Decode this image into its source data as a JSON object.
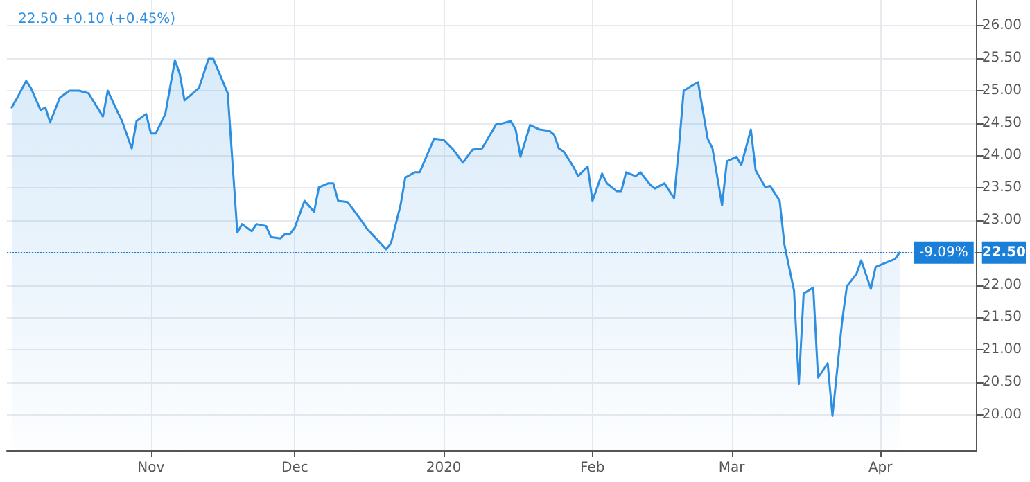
{
  "chart_data": {
    "type": "area",
    "title": "22.50 +0.10 (+0.45%)",
    "x": [
      "2019-10-03",
      "2019-10-04",
      "2019-10-06",
      "2019-10-07",
      "2019-10-09",
      "2019-10-10",
      "2019-10-11",
      "2019-10-13",
      "2019-10-15",
      "2019-10-17",
      "2019-10-19",
      "2019-10-22",
      "2019-10-23",
      "2019-10-25",
      "2019-10-26",
      "2019-10-28",
      "2019-10-29",
      "2019-10-31",
      "2019-11-01",
      "2019-11-02",
      "2019-11-04",
      "2019-11-06",
      "2019-11-07",
      "2019-11-08",
      "2019-11-11",
      "2019-11-13",
      "2019-11-14",
      "2019-11-17",
      "2019-11-19",
      "2019-11-20",
      "2019-11-22",
      "2019-11-23",
      "2019-11-25",
      "2019-11-26",
      "2019-11-28",
      "2019-11-29",
      "2019-11-30",
      "2019-12-01",
      "2019-12-03",
      "2019-12-05",
      "2019-12-06",
      "2019-12-08",
      "2019-12-09",
      "2019-12-10",
      "2019-12-12",
      "2019-12-15",
      "2019-12-16",
      "2019-12-20",
      "2019-12-21",
      "2019-12-23",
      "2019-12-24",
      "2019-12-26",
      "2019-12-27",
      "2019-12-30",
      "2020-01-01",
      "2020-01-03",
      "2020-01-05",
      "2020-01-07",
      "2020-01-09",
      "2020-01-12",
      "2020-01-13",
      "2020-01-15",
      "2020-01-16",
      "2020-01-17",
      "2020-01-19",
      "2020-01-21",
      "2020-01-23",
      "2020-01-24",
      "2020-01-25",
      "2020-01-26",
      "2020-01-28",
      "2020-01-29",
      "2020-01-31",
      "2020-02-01",
      "2020-02-03",
      "2020-02-04",
      "2020-02-06",
      "2020-02-07",
      "2020-02-08",
      "2020-02-10",
      "2020-02-11",
      "2020-02-13",
      "2020-02-14",
      "2020-02-16",
      "2020-02-18",
      "2020-02-19",
      "2020-02-20",
      "2020-02-22",
      "2020-02-23",
      "2020-02-25",
      "2020-02-26",
      "2020-02-28",
      "2020-02-29",
      "2020-03-02",
      "2020-03-03",
      "2020-03-05",
      "2020-03-06",
      "2020-03-08",
      "2020-03-09",
      "2020-03-11",
      "2020-03-12",
      "2020-03-14",
      "2020-03-15",
      "2020-03-16",
      "2020-03-18",
      "2020-03-19",
      "2020-03-21",
      "2020-03-22",
      "2020-03-24",
      "2020-03-25",
      "2020-03-27",
      "2020-03-28",
      "2020-03-30",
      "2020-03-31",
      "2020-04-02",
      "2020-04-04",
      "2020-04-05"
    ],
    "series": [
      {
        "color": "#2e8fe0",
        "values": [
          24.74,
          24.87,
          25.15,
          25.04,
          24.7,
          24.74,
          24.51,
          24.89,
          25.0,
          25.0,
          24.96,
          24.6,
          25.0,
          24.68,
          24.53,
          24.11,
          24.53,
          24.64,
          24.34,
          24.34,
          24.64,
          25.47,
          25.26,
          24.85,
          25.04,
          25.49,
          25.49,
          24.96,
          22.81,
          22.94,
          22.83,
          22.94,
          22.91,
          22.74,
          22.72,
          22.79,
          22.79,
          22.89,
          23.3,
          23.13,
          23.51,
          23.57,
          23.57,
          23.3,
          23.28,
          22.98,
          22.87,
          22.55,
          22.64,
          23.23,
          23.66,
          23.74,
          23.74,
          24.26,
          24.24,
          24.09,
          23.89,
          24.09,
          24.11,
          24.49,
          24.49,
          24.53,
          24.4,
          23.98,
          24.47,
          24.4,
          24.38,
          24.32,
          24.11,
          24.06,
          23.83,
          23.68,
          23.83,
          23.3,
          23.72,
          23.57,
          23.45,
          23.45,
          23.74,
          23.68,
          23.74,
          23.55,
          23.49,
          23.57,
          23.34,
          24.11,
          25.0,
          25.09,
          25.13,
          24.26,
          24.11,
          23.23,
          23.91,
          23.98,
          23.85,
          24.4,
          23.77,
          23.51,
          23.53,
          23.3,
          22.62,
          21.91,
          20.47,
          21.87,
          21.96,
          20.57,
          20.79,
          19.98,
          21.43,
          21.98,
          22.17,
          22.38,
          21.94,
          22.28,
          22.34,
          22.4,
          22.5
        ]
      }
    ],
    "xlim": [
      "2019-10-02",
      "2020-04-21"
    ],
    "xticks": [
      {
        "value": "2019-11-01",
        "label": "Nov"
      },
      {
        "value": "2019-12-01",
        "label": "Dec"
      },
      {
        "value": "2020-01-01",
        "label": "2020"
      },
      {
        "value": "2020-02-01",
        "label": "Feb"
      },
      {
        "value": "2020-03-01",
        "label": "Mar"
      },
      {
        "value": "2020-04-01",
        "label": "Apr"
      }
    ],
    "ylim": [
      19.45,
      26.4
    ],
    "yticks": [
      {
        "value": 20,
        "label": "20.00"
      },
      {
        "value": 20.5,
        "label": "20.50"
      },
      {
        "value": 21,
        "label": "21.00"
      },
      {
        "value": 21.5,
        "label": "21.50"
      },
      {
        "value": 22,
        "label": "22.00"
      },
      {
        "value": 22.5,
        "label": "22.50"
      },
      {
        "value": 23,
        "label": "23.00"
      },
      {
        "value": 23.5,
        "label": "23.50"
      },
      {
        "value": 24,
        "label": "24.00"
      },
      {
        "value": 24.5,
        "label": "24.50"
      },
      {
        "value": 25,
        "label": "25.00"
      },
      {
        "value": 25.5,
        "label": "25.50"
      },
      {
        "value": 26,
        "label": "26.00"
      }
    ],
    "ref_lines": [
      {
        "axis": "y",
        "value": 22.5,
        "color": "#1a7fd9",
        "line_style": "dotted"
      }
    ],
    "annotations": [
      "-9.09%"
    ],
    "grid": true,
    "marker": "none",
    "line_style": "solid"
  }
}
